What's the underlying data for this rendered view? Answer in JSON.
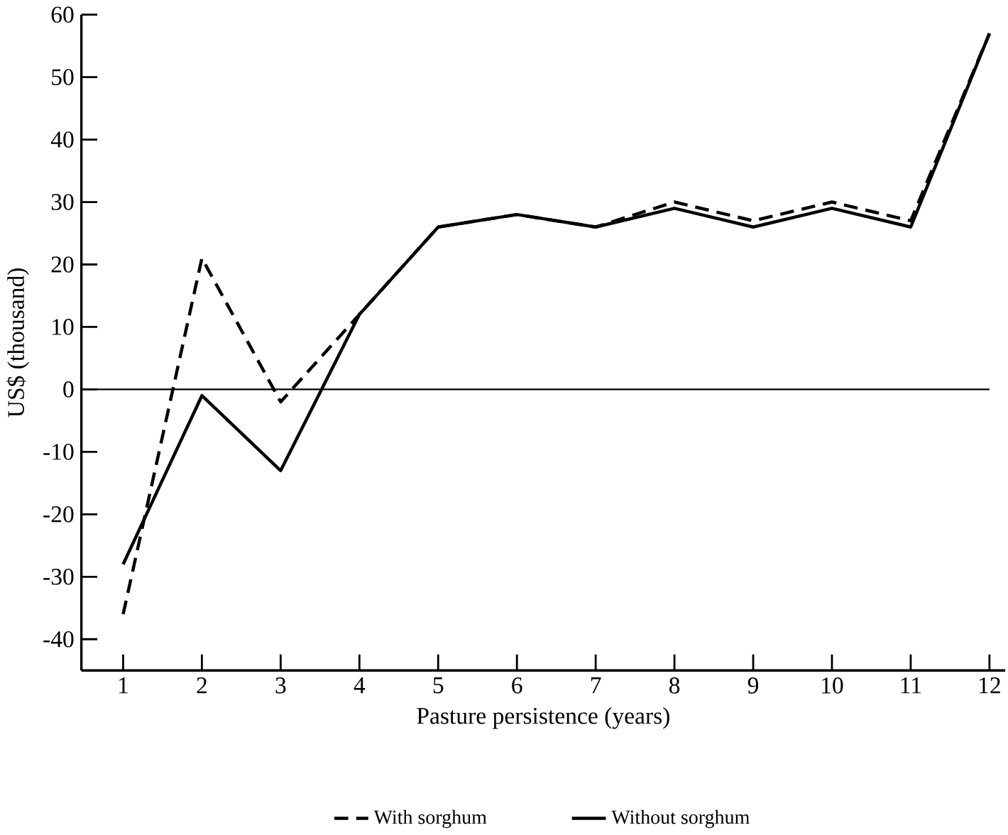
{
  "chart_data": {
    "type": "line",
    "xlabel": "Pasture persistence (years)",
    "ylabel": "US$ (thousand)",
    "x": [
      1,
      2,
      3,
      4,
      5,
      6,
      7,
      8,
      9,
      10,
      11,
      12
    ],
    "xlim": [
      0.47,
      12.2
    ],
    "xticks": [
      1,
      2,
      3,
      4,
      5,
      6,
      7,
      8,
      9,
      10,
      11,
      12
    ],
    "ylim": [
      -45,
      60
    ],
    "yticks": [
      -40,
      -30,
      -20,
      -10,
      0,
      10,
      20,
      30,
      40,
      50,
      60
    ],
    "series": [
      {
        "name": "With sorghum",
        "color": "#000000",
        "line_style": "dashed",
        "values": [
          -36,
          21,
          -2,
          12,
          26,
          28,
          26,
          30,
          27,
          30,
          27,
          57
        ]
      },
      {
        "name": "Without sorghum",
        "color": "#000000",
        "line_style": "solid",
        "values": [
          -28,
          -1,
          -13,
          12,
          26,
          28,
          26,
          29,
          26,
          29,
          26,
          57
        ]
      }
    ],
    "ref_lines": [
      {
        "axis": "y",
        "value": 0,
        "color": "#000000"
      }
    ],
    "grid": false,
    "legend": "bottom",
    "marker": "none"
  }
}
